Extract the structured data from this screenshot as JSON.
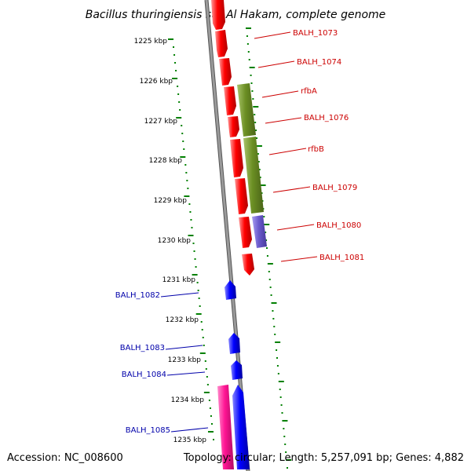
{
  "title": "Bacillus thuringiensis str. Al Hakam, complete genome",
  "footer": {
    "accession": "Accession: NC_008600",
    "topology": "Topology: circular; Length: 5,257,091 bp; Genes: 4,882"
  },
  "colors": {
    "forward_gene": "#ff0000",
    "reverse_gene": "#0000ff",
    "olive_gene": "#6b8e23",
    "purple_gene": "#6a5acd",
    "pink_gene": "#ff1493",
    "tick": "#008000",
    "backbone": "#888888",
    "forward_label": "#cc0000",
    "reverse_label": "#0000aa"
  },
  "scale_labels": [
    "1225 kbp",
    "1226 kbp",
    "1227 kbp",
    "1228 kbp",
    "1229 kbp",
    "1230 kbp",
    "1231 kbp",
    "1232 kbp",
    "1233 kbp",
    "1234 kbp",
    "1235 kbp"
  ],
  "forward_labels": [
    "BALH_1073",
    "BALH_1074",
    "rfbA",
    "BALH_1076",
    "rfbB",
    "BALH_1079",
    "BALH_1080",
    "BALH_1081"
  ],
  "reverse_labels": [
    "BALH_1082",
    "BALH_1083",
    "BALH_1084",
    "BALH_1085"
  ]
}
